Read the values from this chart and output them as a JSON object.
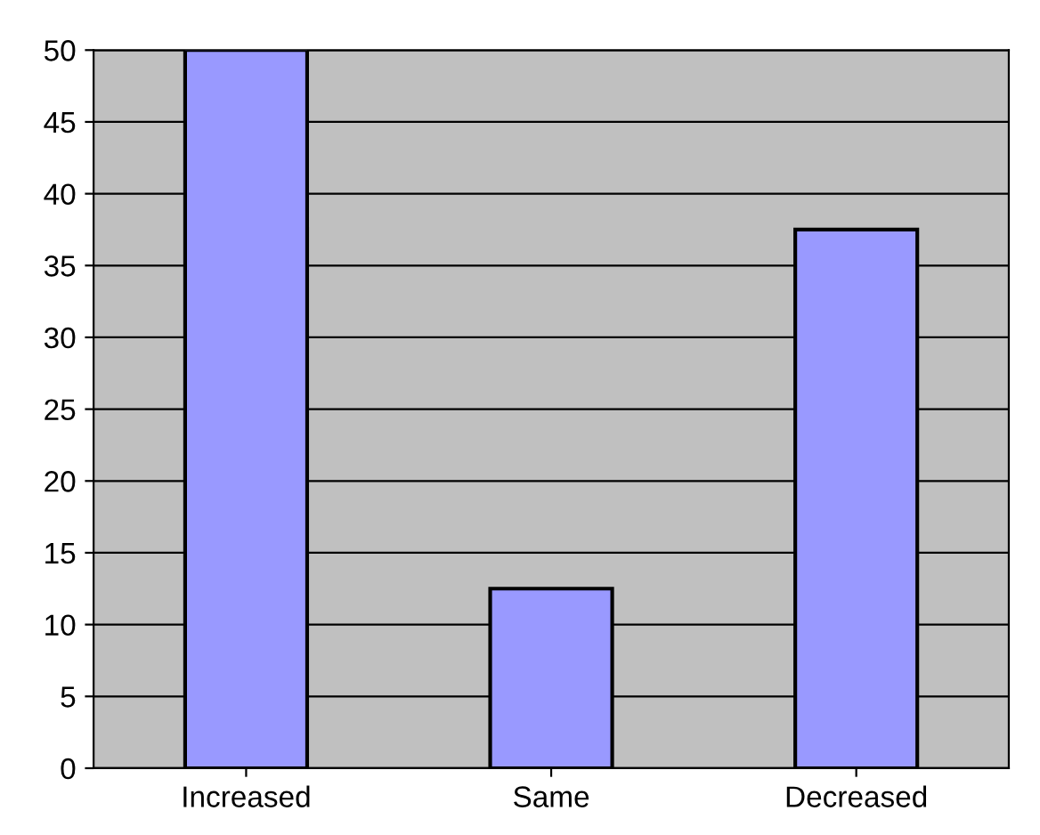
{
  "chart_data": {
    "type": "bar",
    "categories": [
      "Increased",
      "Same",
      "Decreased"
    ],
    "values": [
      50,
      12.5,
      37.5
    ],
    "color": "#9999ff",
    "ylim": [
      0,
      50
    ],
    "yticks": [
      0,
      5,
      10,
      15,
      20,
      25,
      30,
      35,
      40,
      45,
      50
    ],
    "grid": "y"
  }
}
